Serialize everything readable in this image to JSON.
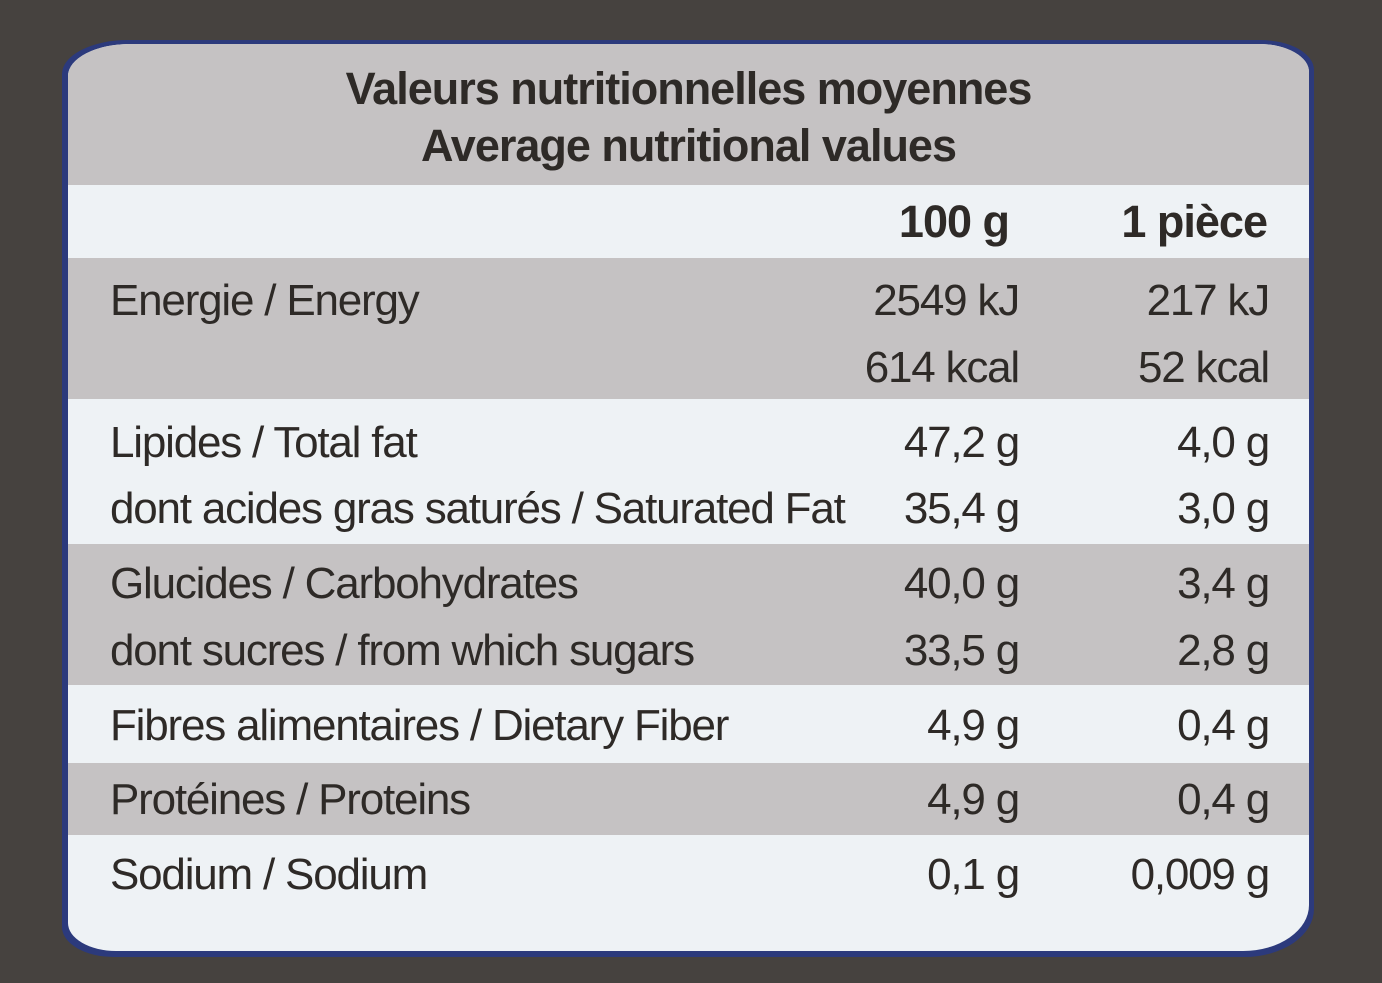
{
  "header": {
    "title_fr": "Valeurs nutritionnelles moyennes",
    "title_en": "Average nutritional values"
  },
  "columns": {
    "per_100g": "100 g",
    "per_piece": "1 pièce"
  },
  "rows": [
    {
      "label": "Energie / Energy",
      "per_100g": "2549 kJ",
      "per_piece": "217 kJ"
    },
    {
      "label": "",
      "per_100g": "614 kcal",
      "per_piece": "52 kcal"
    },
    {
      "label": "Lipides / Total fat",
      "per_100g": "47,2 g",
      "per_piece": "4,0 g"
    },
    {
      "label": "dont acides gras saturés / Saturated Fat",
      "per_100g": "35,4 g",
      "per_piece": "3,0 g"
    },
    {
      "label": "Glucides / Carbohydrates",
      "per_100g": "40,0 g",
      "per_piece": "3,4 g"
    },
    {
      "label": "dont sucres / from which sugars",
      "per_100g": "33,5 g",
      "per_piece": "2,8 g"
    },
    {
      "label": "Fibres alimentaires / Dietary Fiber",
      "per_100g": "4,9 g",
      "per_piece": "0,4 g"
    },
    {
      "label": "Protéines / Proteins",
      "per_100g": "4,9 g",
      "per_piece": "0,4 g"
    },
    {
      "label": "Sodium / Sodium",
      "per_100g": "0,1 g",
      "per_piece": "0,009 g"
    }
  ],
  "colors": {
    "background": "#46423f",
    "frame": "#2c3a7c",
    "light_row": "#eef2f5",
    "shaded_row": "#c5c2c3",
    "text": "#2e2a27"
  }
}
